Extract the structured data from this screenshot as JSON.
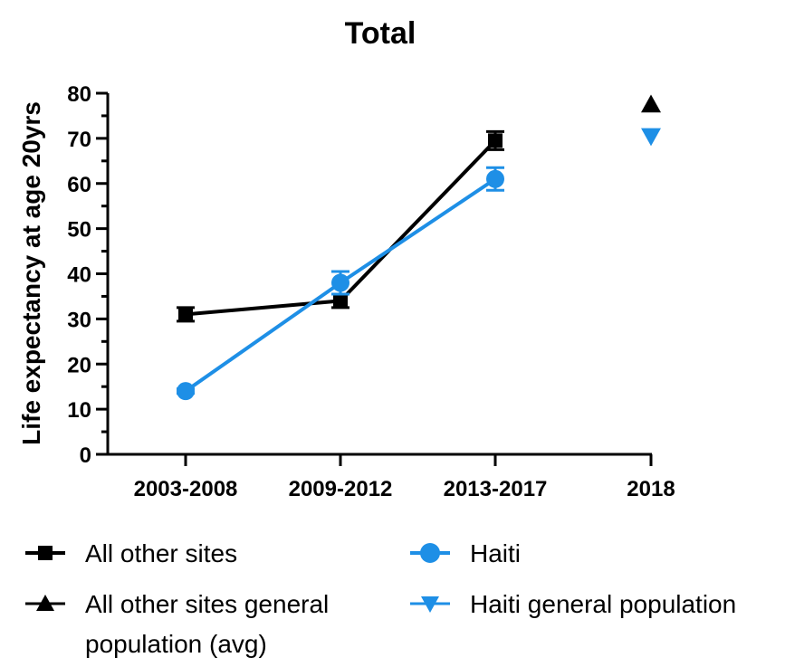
{
  "chart_data": {
    "type": "line",
    "title": "Total",
    "xlabel": "",
    "ylabel": "Life expectancy at age 20yrs",
    "ylim": [
      0,
      80
    ],
    "yticks": [
      0,
      10,
      20,
      30,
      40,
      50,
      60,
      70,
      80
    ],
    "categories": [
      "2003-2008",
      "2009-2012",
      "2013-2017",
      "2018"
    ],
    "grid": false,
    "legend_position": "bottom",
    "series": [
      {
        "name": "All other sites",
        "marker": "square",
        "color": "#000000",
        "values": [
          31,
          34,
          69.5,
          null
        ],
        "error": [
          1.5,
          1.5,
          2,
          null
        ]
      },
      {
        "name": "Haiti",
        "marker": "circle",
        "color": "#1e8fe6",
        "values": [
          14,
          38,
          61,
          null
        ],
        "error": [
          0.5,
          2.5,
          2.5,
          null
        ]
      },
      {
        "name": "All other sites general population (avg)",
        "name_lines": [
          "All other sites general",
          "population (avg)"
        ],
        "marker": "triangle-up",
        "color": "#000000",
        "values": [
          null,
          null,
          null,
          77.5
        ]
      },
      {
        "name": "Haiti general population",
        "marker": "triangle-down",
        "color": "#1e8fe6",
        "values": [
          null,
          null,
          null,
          70.5
        ]
      }
    ],
    "legend_order": [
      0,
      1,
      2,
      3
    ]
  }
}
